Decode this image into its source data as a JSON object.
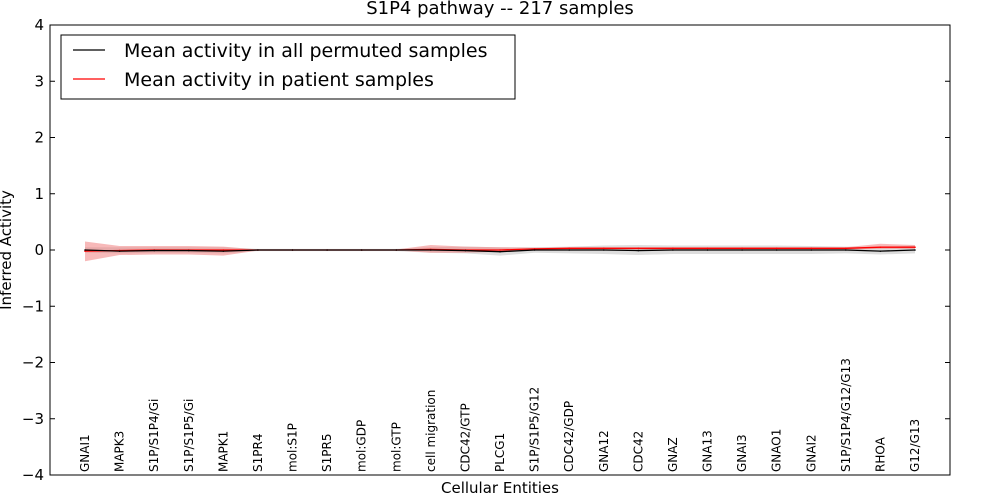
{
  "chart_data": {
    "type": "line",
    "title": "S1P4 pathway -- 217 samples",
    "xlabel": "Cellular Entities",
    "ylabel": "Inferred Activity",
    "ylim": [
      -4,
      4
    ],
    "yticks": [
      -4,
      -3,
      -2,
      -1,
      0,
      1,
      2,
      3,
      4
    ],
    "ytick_labels": [
      "−4",
      "−3",
      "−2",
      "−1",
      "0",
      "1",
      "2",
      "3",
      "4"
    ],
    "grid": false,
    "legend_position": "top-left",
    "categories": [
      "GNAI1",
      "MAPK3",
      "S1P/S1P4/Gi",
      "S1P/S1P5/Gi",
      "MAPK1",
      "S1PR4",
      "mol:S1P",
      "S1PR5",
      "mol:GDP",
      "mol:GTP",
      "cell migration",
      "CDC42/GTP",
      "PLCG1",
      "S1P/S1P5/G12",
      "CDC42/GDP",
      "GNA12",
      "CDC42",
      "GNAZ",
      "GNA13",
      "GNAI3",
      "GNAO1",
      "GNAI2",
      "S1P/S1P4/G12/G13",
      "RHOA",
      "G12/G13"
    ],
    "series": [
      {
        "name": "Mean activity in all permuted samples",
        "color": "#000000",
        "band_color": "#aaaaaa",
        "values": [
          0.0,
          -0.02,
          -0.01,
          -0.01,
          -0.02,
          0.0,
          0.0,
          0.0,
          0.0,
          0.0,
          0.0,
          -0.01,
          -0.03,
          0.0,
          0.0,
          0.0,
          -0.01,
          0.0,
          0.0,
          0.0,
          0.0,
          0.0,
          0.0,
          -0.02,
          0.0
        ],
        "band_lower": [
          -0.05,
          -0.06,
          -0.05,
          -0.05,
          -0.06,
          -0.02,
          -0.02,
          -0.02,
          -0.02,
          -0.02,
          -0.05,
          -0.06,
          -0.1,
          -0.05,
          -0.06,
          -0.07,
          -0.09,
          -0.07,
          -0.07,
          -0.07,
          -0.07,
          -0.07,
          -0.06,
          -0.08,
          -0.06
        ],
        "band_upper": [
          0.05,
          0.05,
          0.05,
          0.05,
          0.05,
          0.02,
          0.02,
          0.02,
          0.02,
          0.02,
          0.05,
          0.06,
          0.05,
          0.05,
          0.06,
          0.08,
          0.09,
          0.08,
          0.08,
          0.08,
          0.08,
          0.07,
          0.06,
          0.05,
          0.08
        ]
      },
      {
        "name": "Mean activity in patient samples",
        "color": "#ff0000",
        "band_color": "#f08080",
        "values": [
          -0.02,
          -0.01,
          0.0,
          0.0,
          0.0,
          0.0,
          0.0,
          0.0,
          0.0,
          0.0,
          0.01,
          0.0,
          0.0,
          0.02,
          0.03,
          0.03,
          0.03,
          0.03,
          0.03,
          0.03,
          0.03,
          0.03,
          0.03,
          0.05,
          0.05
        ],
        "band_lower": [
          -0.2,
          -0.09,
          -0.08,
          -0.08,
          -0.1,
          -0.01,
          -0.01,
          -0.01,
          -0.01,
          -0.01,
          -0.05,
          -0.05,
          -0.03,
          0.0,
          0.01,
          0.01,
          0.01,
          0.01,
          0.01,
          0.01,
          0.01,
          0.01,
          0.01,
          0.02,
          0.02
        ],
        "band_upper": [
          0.15,
          0.07,
          0.07,
          0.07,
          0.06,
          0.01,
          0.01,
          0.01,
          0.01,
          0.01,
          0.09,
          0.06,
          0.05,
          0.04,
          0.05,
          0.05,
          0.05,
          0.05,
          0.05,
          0.05,
          0.05,
          0.05,
          0.05,
          0.11,
          0.09
        ]
      }
    ]
  }
}
